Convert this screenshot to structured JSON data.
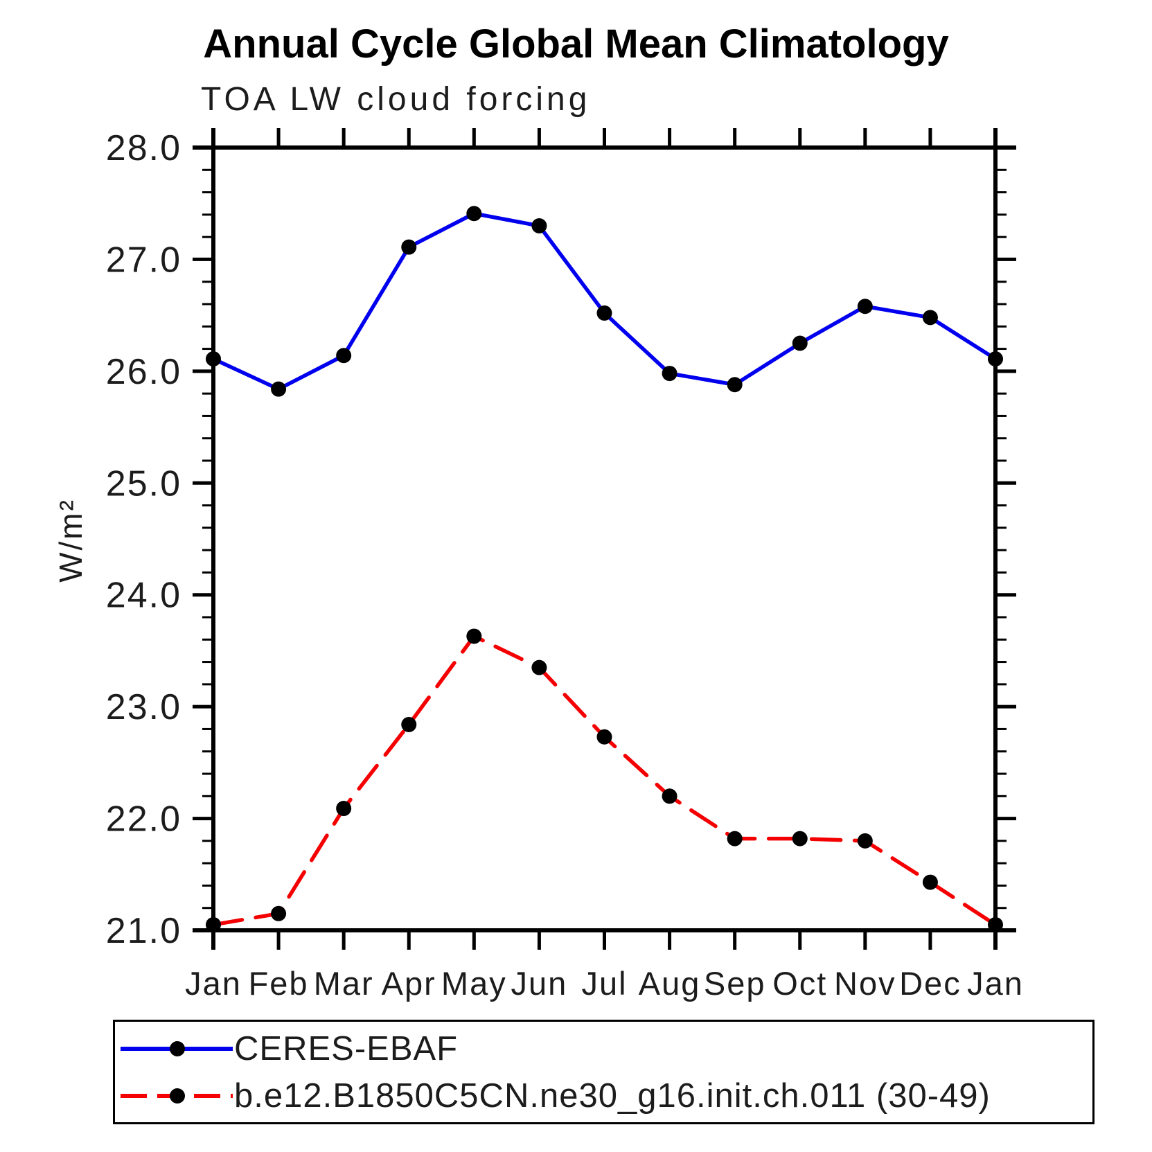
{
  "title": "Annual Cycle Global Mean Climatology",
  "subtitle": "TOA LW cloud forcing",
  "chart_data": {
    "type": "line",
    "title": "Annual Cycle Global Mean Climatology",
    "subtitle": "TOA LW cloud forcing",
    "ylabel": "W/m²",
    "xlabel": "",
    "x_categories": [
      "Jan",
      "Feb",
      "Mar",
      "Apr",
      "May",
      "Jun",
      "Jul",
      "Aug",
      "Sep",
      "Oct",
      "Nov",
      "Dec",
      "Jan"
    ],
    "ylim": [
      21.0,
      28.0
    ],
    "ytick_labels": [
      "21.0",
      "22.0",
      "23.0",
      "24.0",
      "25.0",
      "26.0",
      "27.0",
      "28.0"
    ],
    "ytick_values": [
      21,
      22,
      23,
      24,
      25,
      26,
      27,
      28
    ],
    "minor_tick_step": 0.2,
    "grid": false,
    "legend_position": "bottom",
    "series": [
      {
        "name": "CERES-EBAF",
        "color": "#0000ee",
        "style": "solid",
        "marker": "circle",
        "marker_color": "#000000",
        "values": [
          26.11,
          25.84,
          26.14,
          27.11,
          27.41,
          27.3,
          26.52,
          25.98,
          25.88,
          26.25,
          26.58,
          26.48,
          26.11
        ]
      },
      {
        "name": "b.e12.B1850C5CN.ne30_g16.init.ch.011 (30-49)",
        "color": "#f40000",
        "style": "dashed",
        "marker": "circle",
        "marker_color": "#000000",
        "values": [
          21.05,
          21.15,
          22.09,
          22.84,
          23.63,
          23.35,
          22.73,
          22.2,
          21.82,
          21.82,
          21.8,
          21.43,
          21.05
        ]
      }
    ],
    "axis_color": "#000000"
  }
}
